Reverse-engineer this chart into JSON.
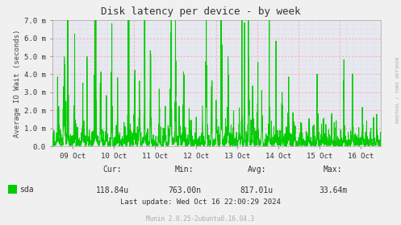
{
  "title": "Disk latency per device - by week",
  "ylabel": "Average IO Wait (seconds)",
  "background_color": "#f0f0f0",
  "plot_bg_color": "#e8e8f0",
  "grid_color_major": "#ff9999",
  "grid_color_minor": "#ccccdd",
  "line_color": "#00cc00",
  "x_tick_labels": [
    "09 Oct",
    "10 Oct",
    "11 Oct",
    "12 Oct",
    "13 Oct",
    "14 Oct",
    "15 Oct",
    "16 Oct"
  ],
  "y_tick_labels": [
    "0.0",
    "1.0 m",
    "2.0 m",
    "3.0 m",
    "4.0 m",
    "5.0 m",
    "6.0 m",
    "7.0 m"
  ],
  "ylim": [
    0,
    0.007
  ],
  "footer_text": "Munin 2.0.25-2ubuntu0.16.04.3",
  "legend_label": "sda",
  "legend_color": "#00cc00",
  "stats_cur": "118.84u",
  "stats_min": "763.00n",
  "stats_avg": "817.01u",
  "stats_max": "33.64m",
  "last_update": "Last update: Wed Oct 16 22:00:29 2024",
  "right_label": "RRDTOOL / TOBI OETIKER",
  "n_points": 2000,
  "seed": 42
}
